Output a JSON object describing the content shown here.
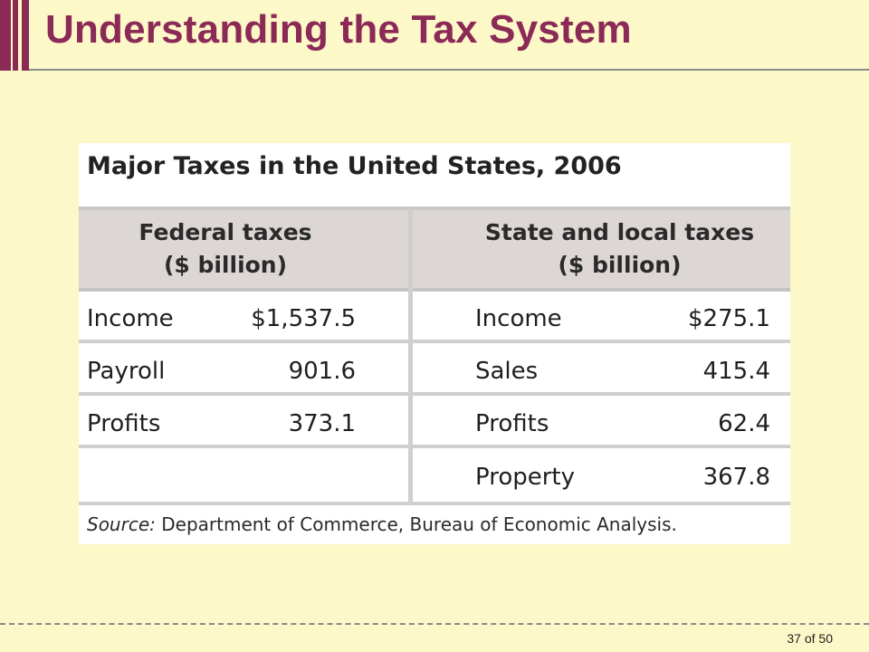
{
  "slide": {
    "title": "Understanding the Tax System",
    "page": {
      "current": "37",
      "of_label": "of",
      "total": "50"
    }
  },
  "table": {
    "title": "Major Taxes in the United States, 2006",
    "federal_header": [
      "Federal taxes",
      "($ billion)"
    ],
    "state_header": [
      "State and local taxes",
      "($ billion)"
    ],
    "federal_rows": [
      {
        "label": "Income",
        "value": "$1,537.5"
      },
      {
        "label": "Payroll",
        "value": "901.6"
      },
      {
        "label": "Profits",
        "value": "373.1"
      }
    ],
    "state_rows": [
      {
        "label": "Income",
        "value": "$275.1"
      },
      {
        "label": "Sales",
        "value": "415.4"
      },
      {
        "label": "Profits",
        "value": "62.4"
      },
      {
        "label": "Property",
        "value": "367.8"
      }
    ],
    "source_label": "Source:",
    "source_text": "Department of Commerce, Bureau of Economic Analysis."
  },
  "colors": {
    "background": "#fdf8c8",
    "accent": "#8b2a57",
    "header_band": "#dcd7d4"
  }
}
